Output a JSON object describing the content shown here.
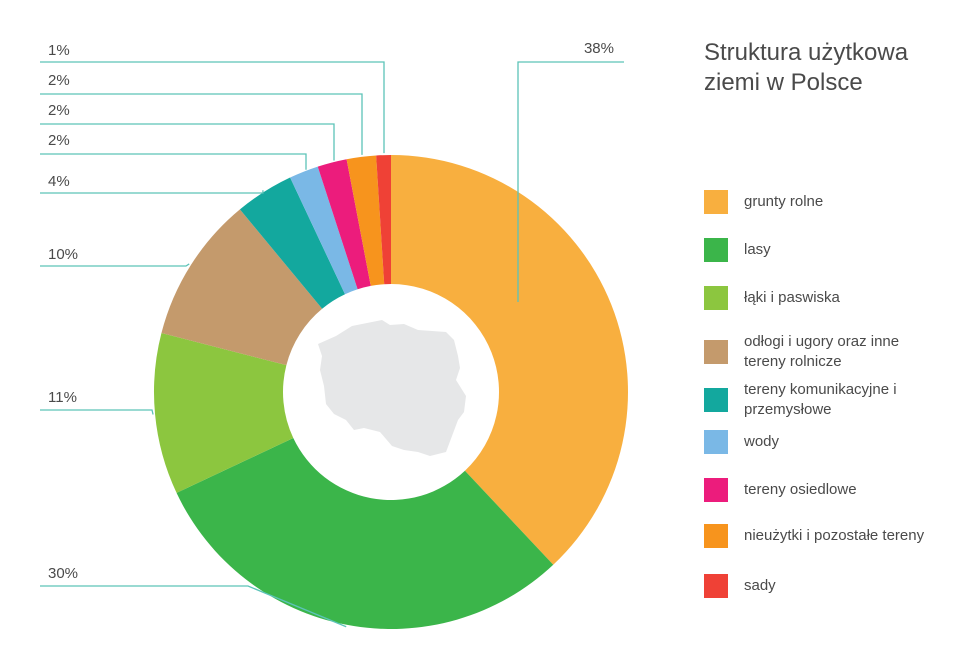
{
  "chart_data": {
    "type": "pie",
    "title": "Struktura użytkowa ziemi w Polsce",
    "categories": [
      "grunty rolne",
      "lasy",
      "łąki i paswiska",
      "odłogi i ugory oraz inne tereny rolnicze",
      "tereny komunikacyjne i przemysłowe",
      "wody",
      "tereny osiedlowe",
      "nieużytki i pozostałe tereny",
      "sady"
    ],
    "values": [
      38,
      30,
      11,
      10,
      4,
      2,
      2,
      2,
      1
    ],
    "labels": [
      "38%",
      "30%",
      "11%",
      "10%",
      "4%",
      "2%",
      "2%",
      "2%",
      "1%"
    ],
    "colors": [
      "#F8AF3F",
      "#3BB54A",
      "#8CC63F",
      "#C49A6C",
      "#13A89E",
      "#7AB8E6",
      "#EC1C7C",
      "#F7941D",
      "#EF4136"
    ],
    "legend_position": "right",
    "donut": true
  },
  "center_icon": "poland-map-icon",
  "leader_color": "#5CC3B8",
  "map_color": "#E6E7E8"
}
